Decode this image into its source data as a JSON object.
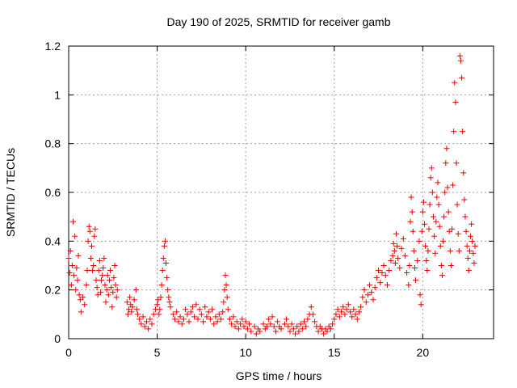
{
  "chart_data": {
    "type": "scatter",
    "title": "Day 190 of 2025, SRMTID for receiver gamb",
    "xlabel": "GPS time / hours",
    "ylabel": "SRMTID / TECUs",
    "xlim": [
      0,
      24
    ],
    "ylim": [
      0,
      1.2
    ],
    "xticks": [
      0,
      5,
      10,
      15,
      20
    ],
    "yticks": [
      0,
      0.2,
      0.4,
      0.6,
      0.8,
      1,
      1.2
    ],
    "xtick_labels": [
      "0",
      "5",
      "10",
      "15",
      "20"
    ],
    "ytick_labels": [
      "0",
      "0.2",
      "0.4",
      "0.6",
      "0.8",
      "1",
      "1.2"
    ],
    "grid": true,
    "marker": "plus",
    "series": [
      {
        "name": "SRMTID",
        "color": "#ee0000",
        "points": [
          [
            0.0,
            0.33
          ],
          [
            0.05,
            0.27
          ],
          [
            0.1,
            0.36
          ],
          [
            0.15,
            0.22
          ],
          [
            0.2,
            0.3
          ],
          [
            0.25,
            0.48
          ],
          [
            0.3,
            0.26
          ],
          [
            0.35,
            0.42
          ],
          [
            0.4,
            0.2
          ],
          [
            0.45,
            0.29
          ],
          [
            0.5,
            0.24
          ],
          [
            0.55,
            0.34
          ],
          [
            0.6,
            0.18
          ],
          [
            0.65,
            0.16
          ],
          [
            0.7,
            0.11
          ],
          [
            0.8,
            0.17
          ],
          [
            0.9,
            0.14
          ],
          [
            1.0,
            0.22
          ],
          [
            1.05,
            0.28
          ],
          [
            1.1,
            0.4
          ],
          [
            1.15,
            0.46
          ],
          [
            1.2,
            0.44
          ],
          [
            1.25,
            0.33
          ],
          [
            1.3,
            0.38
          ],
          [
            1.35,
            0.28
          ],
          [
            1.4,
            0.3
          ],
          [
            1.45,
            0.42
          ],
          [
            1.5,
            0.45
          ],
          [
            1.55,
            0.24
          ],
          [
            1.6,
            0.21
          ],
          [
            1.65,
            0.18
          ],
          [
            1.7,
            0.28
          ],
          [
            1.75,
            0.32
          ],
          [
            1.8,
            0.19
          ],
          [
            1.85,
            0.24
          ],
          [
            1.9,
            0.26
          ],
          [
            1.95,
            0.29
          ],
          [
            2.0,
            0.33
          ],
          [
            2.05,
            0.22
          ],
          [
            2.1,
            0.15
          ],
          [
            2.15,
            0.2
          ],
          [
            2.2,
            0.26
          ],
          [
            2.25,
            0.18
          ],
          [
            2.3,
            0.24
          ],
          [
            2.35,
            0.28
          ],
          [
            2.4,
            0.21
          ],
          [
            2.45,
            0.13
          ],
          [
            2.5,
            0.19
          ],
          [
            2.55,
            0.25
          ],
          [
            2.6,
            0.3
          ],
          [
            2.65,
            0.22
          ],
          [
            2.7,
            0.17
          ],
          [
            2.75,
            0.2
          ],
          [
            3.3,
            0.15
          ],
          [
            3.35,
            0.1
          ],
          [
            3.4,
            0.12
          ],
          [
            3.45,
            0.17
          ],
          [
            3.5,
            0.14
          ],
          [
            3.55,
            0.11
          ],
          [
            3.6,
            0.13
          ],
          [
            3.7,
            0.16
          ],
          [
            3.8,
            0.2
          ],
          [
            3.85,
            0.12
          ],
          [
            3.9,
            0.1
          ],
          [
            4.0,
            0.08
          ],
          [
            4.1,
            0.06
          ],
          [
            4.2,
            0.09
          ],
          [
            4.3,
            0.05
          ],
          [
            4.4,
            0.07
          ],
          [
            4.5,
            0.04
          ],
          [
            4.6,
            0.08
          ],
          [
            4.7,
            0.06
          ],
          [
            4.8,
            0.1
          ],
          [
            4.9,
            0.12
          ],
          [
            5.0,
            0.14
          ],
          [
            5.05,
            0.16
          ],
          [
            5.1,
            0.1
          ],
          [
            5.15,
            0.12
          ],
          [
            5.2,
            0.17
          ],
          [
            5.25,
            0.22
          ],
          [
            5.3,
            0.28
          ],
          [
            5.35,
            0.33
          ],
          [
            5.4,
            0.38
          ],
          [
            5.45,
            0.4
          ],
          [
            5.5,
            0.31
          ],
          [
            5.55,
            0.25
          ],
          [
            5.6,
            0.2
          ],
          [
            5.65,
            0.17
          ],
          [
            5.7,
            0.15
          ],
          [
            5.75,
            0.13
          ],
          [
            5.9,
            0.1
          ],
          [
            6.0,
            0.08
          ],
          [
            6.1,
            0.11
          ],
          [
            6.2,
            0.07
          ],
          [
            6.3,
            0.09
          ],
          [
            6.4,
            0.06
          ],
          [
            6.5,
            0.08
          ],
          [
            6.6,
            0.12
          ],
          [
            6.7,
            0.1
          ],
          [
            6.8,
            0.07
          ],
          [
            6.9,
            0.11
          ],
          [
            7.0,
            0.13
          ],
          [
            7.1,
            0.09
          ],
          [
            7.2,
            0.14
          ],
          [
            7.3,
            0.08
          ],
          [
            7.4,
            0.12
          ],
          [
            7.5,
            0.1
          ],
          [
            7.6,
            0.07
          ],
          [
            7.7,
            0.13
          ],
          [
            7.8,
            0.09
          ],
          [
            7.9,
            0.11
          ],
          [
            8.0,
            0.08
          ],
          [
            8.1,
            0.12
          ],
          [
            8.2,
            0.06
          ],
          [
            8.3,
            0.09
          ],
          [
            8.4,
            0.07
          ],
          [
            8.5,
            0.1
          ],
          [
            8.6,
            0.08
          ],
          [
            8.7,
            0.11
          ],
          [
            8.75,
            0.15
          ],
          [
            8.8,
            0.2
          ],
          [
            8.85,
            0.26
          ],
          [
            8.9,
            0.22
          ],
          [
            8.95,
            0.17
          ],
          [
            9.0,
            0.12
          ],
          [
            9.1,
            0.08
          ],
          [
            9.2,
            0.06
          ],
          [
            9.3,
            0.09
          ],
          [
            9.4,
            0.05
          ],
          [
            9.5,
            0.07
          ],
          [
            9.6,
            0.04
          ],
          [
            9.7,
            0.06
          ],
          [
            9.8,
            0.08
          ],
          [
            9.9,
            0.05
          ],
          [
            10.0,
            0.07
          ],
          [
            10.1,
            0.04
          ],
          [
            10.2,
            0.06
          ],
          [
            10.3,
            0.03
          ],
          [
            10.5,
            0.05
          ],
          [
            10.6,
            0.02
          ],
          [
            10.7,
            0.04
          ],
          [
            10.8,
            0.03
          ],
          [
            11.0,
            0.06
          ],
          [
            11.1,
            0.04
          ],
          [
            11.2,
            0.05
          ],
          [
            11.3,
            0.08
          ],
          [
            11.4,
            0.06
          ],
          [
            11.5,
            0.09
          ],
          [
            11.6,
            0.05
          ],
          [
            11.7,
            0.03
          ],
          [
            11.8,
            0.07
          ],
          [
            11.9,
            0.05
          ],
          [
            12.0,
            0.04
          ],
          [
            12.2,
            0.06
          ],
          [
            12.3,
            0.08
          ],
          [
            12.4,
            0.05
          ],
          [
            12.5,
            0.03
          ],
          [
            12.6,
            0.06
          ],
          [
            12.7,
            0.04
          ],
          [
            12.8,
            0.02
          ],
          [
            12.9,
            0.05
          ],
          [
            13.0,
            0.03
          ],
          [
            13.1,
            0.06
          ],
          [
            13.2,
            0.04
          ],
          [
            13.3,
            0.07
          ],
          [
            13.4,
            0.05
          ],
          [
            13.5,
            0.08
          ],
          [
            13.6,
            0.1
          ],
          [
            13.7,
            0.13
          ],
          [
            13.8,
            0.1
          ],
          [
            13.9,
            0.07
          ],
          [
            14.0,
            0.05
          ],
          [
            14.1,
            0.03
          ],
          [
            14.2,
            0.05
          ],
          [
            14.3,
            0.04
          ],
          [
            14.4,
            0.02
          ],
          [
            14.5,
            0.04
          ],
          [
            14.6,
            0.03
          ],
          [
            14.7,
            0.05
          ],
          [
            14.8,
            0.04
          ],
          [
            14.9,
            0.06
          ],
          [
            15.0,
            0.08
          ],
          [
            15.1,
            0.1
          ],
          [
            15.2,
            0.12
          ],
          [
            15.3,
            0.09
          ],
          [
            15.4,
            0.11
          ],
          [
            15.5,
            0.13
          ],
          [
            15.6,
            0.1
          ],
          [
            15.7,
            0.12
          ],
          [
            15.8,
            0.14
          ],
          [
            15.9,
            0.11
          ],
          [
            16.0,
            0.09
          ],
          [
            16.1,
            0.12
          ],
          [
            16.2,
            0.1
          ],
          [
            16.3,
            0.08
          ],
          [
            16.4,
            0.11
          ],
          [
            16.5,
            0.13
          ],
          [
            16.6,
            0.17
          ],
          [
            16.7,
            0.2
          ],
          [
            16.8,
            0.15
          ],
          [
            16.9,
            0.18
          ],
          [
            17.0,
            0.22
          ],
          [
            17.1,
            0.19
          ],
          [
            17.2,
            0.16
          ],
          [
            17.3,
            0.21
          ],
          [
            17.4,
            0.25
          ],
          [
            17.5,
            0.28
          ],
          [
            17.6,
            0.23
          ],
          [
            17.7,
            0.27
          ],
          [
            17.8,
            0.3
          ],
          [
            17.9,
            0.26
          ],
          [
            18.0,
            0.22
          ],
          [
            18.1,
            0.28
          ],
          [
            18.2,
            0.32
          ],
          [
            18.3,
            0.34
          ],
          [
            18.35,
            0.39
          ],
          [
            18.4,
            0.36
          ],
          [
            18.45,
            0.31
          ],
          [
            18.5,
            0.43
          ],
          [
            18.55,
            0.38
          ],
          [
            18.6,
            0.33
          ],
          [
            18.7,
            0.29
          ],
          [
            18.8,
            0.37
          ],
          [
            18.9,
            0.41
          ],
          [
            19.0,
            0.34
          ],
          [
            19.1,
            0.27
          ],
          [
            19.2,
            0.22
          ],
          [
            19.25,
            0.3
          ],
          [
            19.3,
            0.48
          ],
          [
            19.35,
            0.58
          ],
          [
            19.4,
            0.52
          ],
          [
            19.45,
            0.44
          ],
          [
            19.5,
            0.36
          ],
          [
            19.55,
            0.29
          ],
          [
            19.6,
            0.24
          ],
          [
            19.7,
            0.32
          ],
          [
            19.8,
            0.4
          ],
          [
            19.85,
            0.18
          ],
          [
            19.9,
            0.14
          ],
          [
            19.95,
            0.44
          ],
          [
            20.0,
            0.52
          ],
          [
            20.05,
            0.56
          ],
          [
            20.1,
            0.47
          ],
          [
            20.15,
            0.38
          ],
          [
            20.2,
            0.32
          ],
          [
            20.25,
            0.28
          ],
          [
            20.3,
            0.36
          ],
          [
            20.35,
            0.45
          ],
          [
            20.4,
            0.55
          ],
          [
            20.45,
            0.66
          ],
          [
            20.5,
            0.7
          ],
          [
            20.55,
            0.6
          ],
          [
            20.6,
            0.5
          ],
          [
            20.65,
            0.42
          ],
          [
            20.7,
            0.35
          ],
          [
            20.75,
            0.48
          ],
          [
            20.8,
            0.58
          ],
          [
            20.85,
            0.64
          ],
          [
            20.9,
            0.55
          ],
          [
            20.95,
            0.46
          ],
          [
            21.0,
            0.38
          ],
          [
            21.05,
            0.3
          ],
          [
            21.1,
            0.26
          ],
          [
            21.15,
            0.4
          ],
          [
            21.2,
            0.5
          ],
          [
            21.25,
            0.6
          ],
          [
            21.3,
            0.72
          ],
          [
            21.35,
            0.78
          ],
          [
            21.4,
            0.62
          ],
          [
            21.45,
            0.52
          ],
          [
            21.5,
            0.44
          ],
          [
            21.55,
            0.36
          ],
          [
            21.6,
            0.3
          ],
          [
            21.65,
            0.45
          ],
          [
            21.7,
            0.63
          ],
          [
            21.75,
            0.85
          ],
          [
            21.8,
            1.05
          ],
          [
            21.85,
            0.97
          ],
          [
            21.9,
            0.72
          ],
          [
            21.95,
            0.55
          ],
          [
            22.0,
            0.43
          ],
          [
            22.05,
            0.36
          ],
          [
            22.1,
            1.16
          ],
          [
            22.15,
            1.14
          ],
          [
            22.2,
            1.07
          ],
          [
            22.25,
            0.85
          ],
          [
            22.3,
            0.68
          ],
          [
            22.35,
            0.57
          ],
          [
            22.4,
            0.5
          ],
          [
            22.45,
            0.44
          ],
          [
            22.5,
            0.38
          ],
          [
            22.55,
            0.33
          ],
          [
            22.6,
            0.28
          ],
          [
            22.65,
            0.36
          ],
          [
            22.7,
            0.42
          ],
          [
            22.75,
            0.47
          ],
          [
            22.8,
            0.4
          ],
          [
            22.85,
            0.35
          ],
          [
            22.9,
            0.31
          ],
          [
            22.95,
            0.38
          ]
        ]
      }
    ]
  }
}
